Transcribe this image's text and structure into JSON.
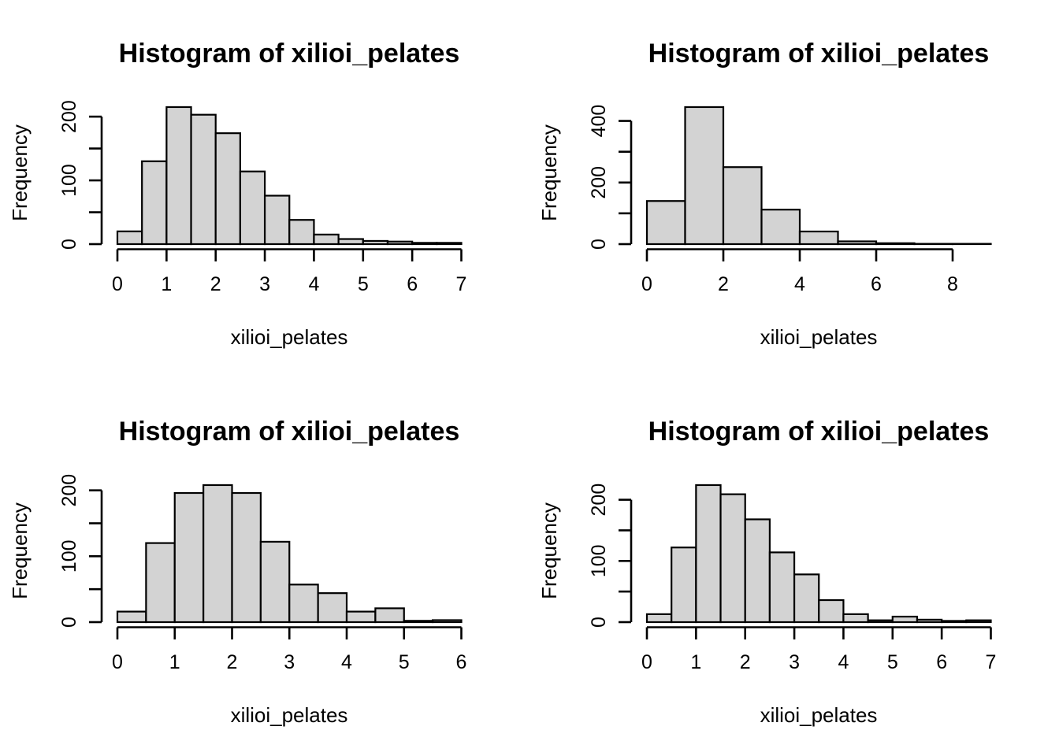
{
  "page": {
    "background_color": "#ffffff",
    "foreground_color": "#000000",
    "bar_fill_color": "#d3d3d3",
    "layout": "2x2 grid of R base-graphics histograms"
  },
  "chart_data": [
    {
      "type": "bar",
      "variant": "histogram",
      "position": "top-left",
      "title": "Histogram of xilioi_pelates",
      "xlabel": "xilioi_pelates",
      "ylabel": "Frequency",
      "bin_start": 0,
      "bin_width": 0.5,
      "counts": [
        20,
        130,
        215,
        203,
        174,
        114,
        76,
        38,
        15,
        8,
        5,
        4,
        2,
        2
      ],
      "x_ticks": [
        0,
        1,
        2,
        3,
        4,
        5,
        6,
        7
      ],
      "y_ticks": [
        0,
        50,
        100,
        150,
        200
      ],
      "y_labeled_ticks": [
        0,
        100,
        200
      ],
      "xlim": [
        0,
        7
      ],
      "ylim": [
        0,
        215
      ],
      "grid": false,
      "legend": null
    },
    {
      "type": "bar",
      "variant": "histogram",
      "position": "top-right",
      "title": "Histogram of xilioi_pelates",
      "xlabel": "xilioi_pelates",
      "ylabel": "Frequency",
      "bin_start": 0,
      "bin_width": 1,
      "counts": [
        140,
        445,
        250,
        112,
        41,
        9,
        3,
        1,
        1
      ],
      "x_ticks": [
        0,
        2,
        4,
        6,
        8
      ],
      "y_ticks": [
        0,
        100,
        200,
        300,
        400
      ],
      "y_labeled_ticks": [
        0,
        200,
        400
      ],
      "xlim": [
        0,
        9
      ],
      "ylim": [
        0,
        445
      ],
      "grid": false,
      "legend": null
    },
    {
      "type": "bar",
      "variant": "histogram",
      "position": "bottom-left",
      "title": "Histogram of xilioi_pelates",
      "xlabel": "xilioi_pelates",
      "ylabel": "Frequency",
      "bin_start": 0,
      "bin_width": 0.5,
      "counts": [
        16,
        120,
        196,
        208,
        196,
        122,
        57,
        44,
        16,
        21,
        2,
        3
      ],
      "x_ticks": [
        0,
        1,
        2,
        3,
        4,
        5,
        6
      ],
      "y_ticks": [
        0,
        50,
        100,
        150,
        200
      ],
      "y_labeled_ticks": [
        0,
        100,
        200
      ],
      "xlim": [
        0,
        6
      ],
      "ylim": [
        0,
        208
      ],
      "grid": false,
      "legend": null
    },
    {
      "type": "bar",
      "variant": "histogram",
      "position": "bottom-right",
      "title": "Histogram of xilioi_pelates",
      "xlabel": "xilioi_pelates",
      "ylabel": "Frequency",
      "bin_start": 0,
      "bin_width": 0.5,
      "counts": [
        13,
        122,
        224,
        209,
        168,
        114,
        78,
        36,
        13,
        3,
        9,
        4,
        2,
        3
      ],
      "x_ticks": [
        0,
        1,
        2,
        3,
        4,
        5,
        6,
        7
      ],
      "y_ticks": [
        0,
        50,
        100,
        150,
        200
      ],
      "y_labeled_ticks": [
        0,
        100,
        200
      ],
      "xlim": [
        0,
        7
      ],
      "ylim": [
        0,
        224
      ],
      "grid": false,
      "legend": null
    }
  ]
}
